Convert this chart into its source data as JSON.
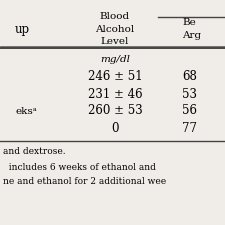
{
  "bg_color": "#f0ede8",
  "line_color": "#444444",
  "header_left_label": "up",
  "header_bal_label": "Blood\nAlcohol\nLevel",
  "header_right_label": "Be\nArg",
  "unit_row": "mg/dl",
  "rows": [
    {
      "label": "",
      "bal": "246 ± 51",
      "val": "68"
    },
    {
      "label": "",
      "bal": "231 ± 46",
      "val": "53"
    },
    {
      "label": "eksᵃ",
      "bal": "260 ± 53",
      "val": "56"
    },
    {
      "label": "",
      "bal": "0",
      "val": "77"
    }
  ],
  "footnotes": [
    "and dextrose.",
    "  includes 6 weeks of ethanol and",
    "ne and ethanol for 2 additional wee"
  ],
  "font_size": 8.5,
  "small_font_size": 7.5,
  "footnote_font_size": 6.5
}
